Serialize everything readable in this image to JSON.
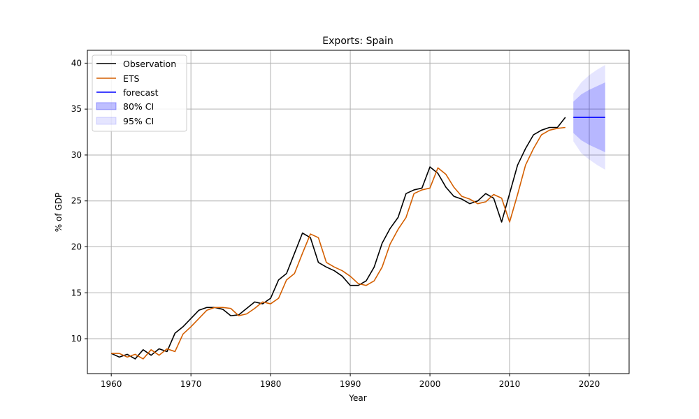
{
  "chart_data": {
    "type": "line",
    "title": "Exports: Spain",
    "xlabel": "Year",
    "ylabel": "% of GDP",
    "xlim": [
      1957,
      2025
    ],
    "ylim": [
      6.2,
      41.4
    ],
    "xticks": [
      1960,
      1970,
      1980,
      1990,
      2000,
      2010,
      2020
    ],
    "yticks": [
      10,
      15,
      20,
      25,
      30,
      35,
      40
    ],
    "grid": true,
    "legend_position": "top-left",
    "colors": {
      "observation": "#000000",
      "ets": "#d45f00",
      "forecast": "#0000ff",
      "ci80": "#0000ff",
      "ci95": "#0000ff"
    },
    "legend": [
      "Observation",
      "ETS",
      "forecast",
      "80% CI",
      "95% CI"
    ],
    "series": [
      {
        "name": "Observation",
        "x": [
          1960,
          1961,
          1962,
          1963,
          1964,
          1965,
          1966,
          1967,
          1968,
          1969,
          1970,
          1971,
          1972,
          1973,
          1974,
          1975,
          1976,
          1977,
          1978,
          1979,
          1980,
          1981,
          1982,
          1983,
          1984,
          1985,
          1986,
          1987,
          1988,
          1989,
          1990,
          1991,
          1992,
          1993,
          1994,
          1995,
          1996,
          1997,
          1998,
          1999,
          2000,
          2001,
          2002,
          2003,
          2004,
          2005,
          2006,
          2007,
          2008,
          2009,
          2010,
          2011,
          2012,
          2013,
          2014,
          2015,
          2016,
          2017
        ],
        "y": [
          8.4,
          8.0,
          8.3,
          7.8,
          8.8,
          8.2,
          8.9,
          8.6,
          10.6,
          11.3,
          12.2,
          13.1,
          13.4,
          13.4,
          13.2,
          12.5,
          12.6,
          13.3,
          14.0,
          13.8,
          14.4,
          16.4,
          17.1,
          19.3,
          21.5,
          21.0,
          18.3,
          17.8,
          17.4,
          16.8,
          15.8,
          15.8,
          16.3,
          17.8,
          20.4,
          22.0,
          23.2,
          25.8,
          26.2,
          26.4,
          28.7,
          28.0,
          26.5,
          25.5,
          25.2,
          24.7,
          25.0,
          25.8,
          25.3,
          22.7,
          25.8,
          28.9,
          30.7,
          32.2,
          32.7,
          33.0,
          33.0,
          34.1
        ]
      },
      {
        "name": "ETS",
        "x": [
          1960,
          1961,
          1962,
          1963,
          1964,
          1965,
          1966,
          1967,
          1968,
          1969,
          1970,
          1971,
          1972,
          1973,
          1974,
          1975,
          1976,
          1977,
          1978,
          1979,
          1980,
          1981,
          1982,
          1983,
          1984,
          1985,
          1986,
          1987,
          1988,
          1989,
          1990,
          1991,
          1992,
          1993,
          1994,
          1995,
          1996,
          1997,
          1998,
          1999,
          2000,
          2001,
          2002,
          2003,
          2004,
          2005,
          2006,
          2007,
          2008,
          2009,
          2010,
          2011,
          2012,
          2013,
          2014,
          2015,
          2016,
          2017
        ],
        "y": [
          8.4,
          8.4,
          8.0,
          8.3,
          7.8,
          8.8,
          8.2,
          8.9,
          8.6,
          10.5,
          11.3,
          12.2,
          13.1,
          13.4,
          13.4,
          13.3,
          12.5,
          12.7,
          13.3,
          14.0,
          13.8,
          14.4,
          16.4,
          17.1,
          19.3,
          21.4,
          21.0,
          18.3,
          17.8,
          17.4,
          16.8,
          16.0,
          15.8,
          16.3,
          17.8,
          20.3,
          21.9,
          23.2,
          25.8,
          26.2,
          26.4,
          28.6,
          27.9,
          26.5,
          25.5,
          25.2,
          24.7,
          24.9,
          25.7,
          25.3,
          22.7,
          25.7,
          28.9,
          30.7,
          32.2,
          32.7,
          32.9,
          33.0
        ]
      }
    ],
    "forecast": {
      "name": "forecast",
      "x": [
        2018,
        2022
      ],
      "y": [
        34.1,
        34.1
      ]
    },
    "ci80": {
      "name": "80% CI",
      "x": [
        2018,
        2019,
        2020,
        2021,
        2022
      ],
      "lower": [
        32.4,
        31.6,
        31.1,
        30.7,
        30.3
      ],
      "upper": [
        35.8,
        36.6,
        37.1,
        37.5,
        37.9
      ]
    },
    "ci95": {
      "name": "95% CI",
      "x": [
        2018,
        2019,
        2020,
        2021,
        2022
      ],
      "lower": [
        31.5,
        30.2,
        29.5,
        28.9,
        28.4
      ],
      "upper": [
        36.7,
        37.9,
        38.7,
        39.3,
        39.8
      ]
    }
  }
}
